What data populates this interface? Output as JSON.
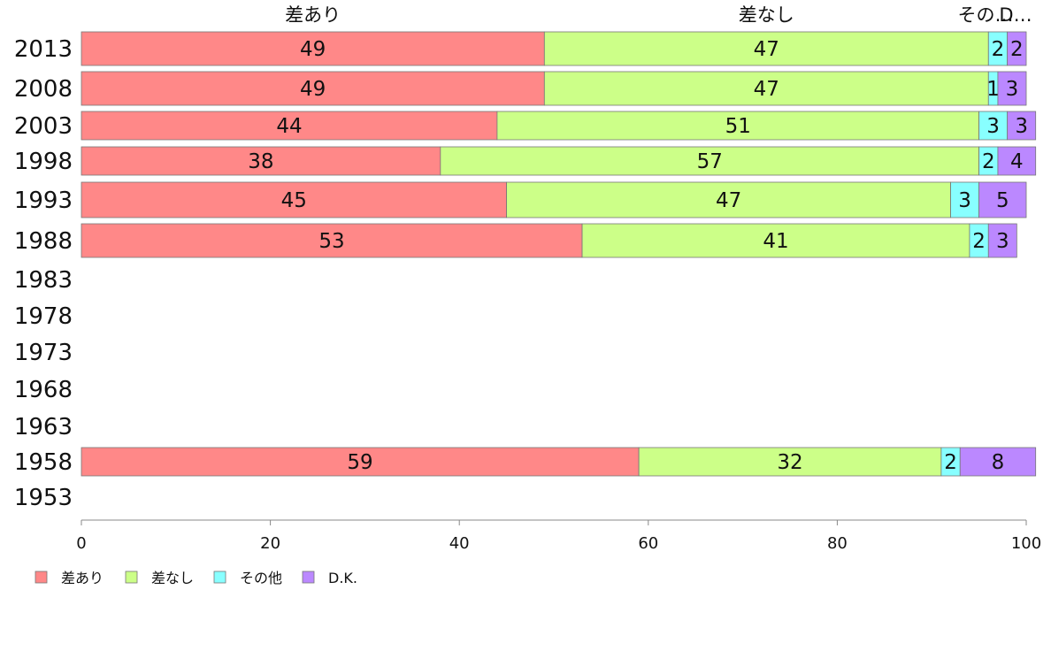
{
  "chart_data": {
    "type": "bar",
    "orientation": "horizontal",
    "stacked": true,
    "categories": [
      "2013",
      "2008",
      "2003",
      "1998",
      "1993",
      "1988",
      "1983",
      "1978",
      "1973",
      "1968",
      "1963",
      "1958",
      "1953"
    ],
    "series": [
      {
        "name": "差あり",
        "color": "#FF8888",
        "values": [
          49,
          49,
          44,
          38,
          45,
          53,
          null,
          null,
          null,
          null,
          null,
          59,
          null
        ]
      },
      {
        "name": "差なし",
        "color": "#CCFF88",
        "values": [
          47,
          47,
          51,
          57,
          47,
          41,
          null,
          null,
          null,
          null,
          null,
          32,
          null
        ]
      },
      {
        "name": "その他",
        "color": "#88FFFF",
        "values": [
          2,
          1,
          3,
          2,
          3,
          2,
          null,
          null,
          null,
          null,
          null,
          2,
          null
        ]
      },
      {
        "name": "D.K.",
        "color": "#BB88FF",
        "values": [
          2,
          3,
          3,
          4,
          5,
          3,
          null,
          null,
          null,
          null,
          null,
          8,
          null
        ]
      }
    ],
    "top_labels": [
      "差あり",
      "差なし",
      "その…",
      "D…"
    ],
    "xlim": [
      0,
      100
    ],
    "xticks": [
      0,
      20,
      40,
      60,
      80,
      100
    ],
    "legend_position": "bottom-left",
    "grid": false
  }
}
